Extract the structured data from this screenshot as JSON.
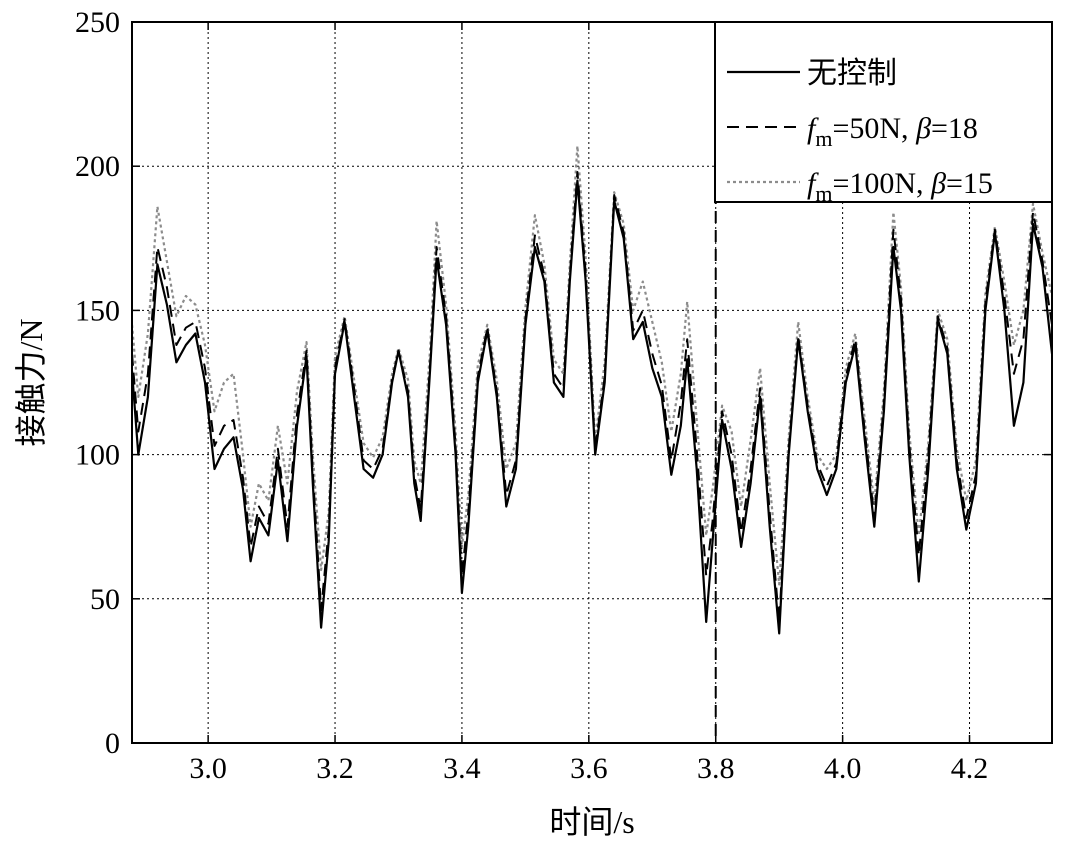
{
  "chart_data": {
    "type": "line",
    "xlabel": "时间/s",
    "ylabel": "接触力/N",
    "xlim": [
      2.88,
      4.33
    ],
    "ylim": [
      0,
      250
    ],
    "xticks": [
      3.0,
      3.2,
      3.4,
      3.6,
      3.8,
      4.0,
      4.2
    ],
    "xtick_labels": [
      "3.0",
      "3.2",
      "3.4",
      "3.6",
      "3.8",
      "4.0",
      "4.2"
    ],
    "yticks": [
      0,
      50,
      100,
      150,
      200,
      250
    ],
    "ytick_labels": [
      "0",
      "50",
      "100",
      "150",
      "200",
      "250"
    ],
    "grid": true,
    "legend_position": "top-right",
    "vertical_marker_x": 3.8,
    "series": [
      {
        "name": "无控制",
        "legend": {
          "prefix": "",
          "sub": "",
          "rest": "",
          "beta": "",
          "tail": "无控制"
        },
        "color": "#000000",
        "style": "solid",
        "x": [
          2.88,
          2.89,
          2.905,
          2.92,
          2.935,
          2.95,
          2.965,
          2.98,
          2.995,
          3.01,
          3.025,
          3.04,
          3.055,
          3.067,
          3.08,
          3.095,
          3.11,
          3.125,
          3.14,
          3.155,
          3.165,
          3.178,
          3.19,
          3.2,
          3.215,
          3.23,
          3.245,
          3.26,
          3.275,
          3.29,
          3.3,
          3.315,
          3.325,
          3.335,
          3.35,
          3.36,
          3.375,
          3.39,
          3.4,
          3.41,
          3.425,
          3.44,
          3.455,
          3.47,
          3.485,
          3.5,
          3.515,
          3.53,
          3.545,
          3.56,
          3.57,
          3.582,
          3.595,
          3.61,
          3.625,
          3.64,
          3.655,
          3.67,
          3.685,
          3.7,
          3.715,
          3.73,
          3.745,
          3.755,
          3.77,
          3.785,
          3.795,
          3.81,
          3.825,
          3.84,
          3.855,
          3.87,
          3.885,
          3.9,
          3.915,
          3.93,
          3.945,
          3.96,
          3.975,
          3.99,
          4.005,
          4.02,
          4.035,
          4.05,
          4.065,
          4.08,
          4.092,
          4.105,
          4.12,
          4.135,
          4.15,
          4.165,
          4.18,
          4.195,
          4.21,
          4.225,
          4.24,
          4.255,
          4.27,
          4.285,
          4.3,
          4.315,
          4.33
        ],
        "values": [
          129,
          100,
          120,
          166,
          152,
          132,
          138,
          142,
          125,
          95,
          102,
          106,
          88,
          63,
          78,
          72,
          98,
          70,
          110,
          134,
          90,
          40,
          70,
          128,
          146,
          120,
          95,
          92,
          100,
          125,
          136,
          120,
          90,
          77,
          130,
          168,
          145,
          100,
          52,
          75,
          125,
          143,
          120,
          82,
          95,
          145,
          172,
          160,
          125,
          120,
          160,
          195,
          160,
          100,
          125,
          188,
          175,
          140,
          146,
          130,
          120,
          93,
          110,
          133,
          95,
          42,
          70,
          112,
          95,
          68,
          90,
          120,
          75,
          38,
          100,
          140,
          115,
          95,
          86,
          95,
          125,
          138,
          105,
          75,
          115,
          172,
          150,
          100,
          56,
          95,
          147,
          135,
          95,
          74,
          90,
          150,
          177,
          150,
          110,
          125,
          180,
          165,
          135
        ]
      },
      {
        "name": "fm=50N, β=18",
        "legend": {
          "prefix": "f",
          "sub": "m",
          "rest": "=50N, ",
          "beta": "β",
          "tail": "=18"
        },
        "color": "#000000",
        "style": "dashed",
        "x": [
          2.88,
          2.89,
          2.905,
          2.92,
          2.935,
          2.95,
          2.965,
          2.98,
          2.995,
          3.01,
          3.025,
          3.04,
          3.055,
          3.067,
          3.08,
          3.095,
          3.11,
          3.125,
          3.14,
          3.155,
          3.165,
          3.178,
          3.19,
          3.2,
          3.215,
          3.23,
          3.245,
          3.26,
          3.275,
          3.29,
          3.3,
          3.315,
          3.325,
          3.335,
          3.35,
          3.36,
          3.375,
          3.39,
          3.4,
          3.41,
          3.425,
          3.44,
          3.455,
          3.47,
          3.485,
          3.5,
          3.515,
          3.53,
          3.545,
          3.56,
          3.57,
          3.582,
          3.595,
          3.61,
          3.625,
          3.64,
          3.655,
          3.67,
          3.685,
          3.7,
          3.715,
          3.73,
          3.745,
          3.755,
          3.77,
          3.785,
          3.795,
          3.81,
          3.825,
          3.84,
          3.855,
          3.87,
          3.885,
          3.9,
          3.915,
          3.93,
          3.945,
          3.96,
          3.975,
          3.99,
          4.005,
          4.02,
          4.035,
          4.05,
          4.065,
          4.08,
          4.092,
          4.105,
          4.12,
          4.135,
          4.15,
          4.165,
          4.18,
          4.195,
          4.21,
          4.225,
          4.24,
          4.255,
          4.27,
          4.285,
          4.3,
          4.315,
          4.33
        ],
        "values": [
          135,
          108,
          128,
          172,
          158,
          138,
          144,
          146,
          130,
          103,
          110,
          112,
          92,
          68,
          82,
          76,
          102,
          75,
          114,
          136,
          94,
          46,
          74,
          130,
          147,
          123,
          98,
          95,
          102,
          126,
          136,
          122,
          93,
          81,
          132,
          172,
          148,
          103,
          58,
          80,
          127,
          144,
          122,
          86,
          98,
          147,
          176,
          162,
          128,
          123,
          162,
          198,
          163,
          102,
          127,
          190,
          177,
          143,
          150,
          135,
          124,
          98,
          118,
          140,
          102,
          58,
          77,
          115,
          100,
          73,
          95,
          123,
          80,
          42,
          102,
          141,
          117,
          97,
          89,
          97,
          127,
          140,
          108,
          78,
          118,
          178,
          154,
          104,
          65,
          100,
          148,
          137,
          98,
          78,
          93,
          153,
          178,
          155,
          128,
          140,
          184,
          167,
          145
        ]
      },
      {
        "name": "fm=100N, β=15",
        "legend": {
          "prefix": "f",
          "sub": "m",
          "rest": "=100N, ",
          "beta": "β",
          "tail": "=15"
        },
        "color": "#8c8c8c",
        "style": "dotted",
        "x": [
          2.88,
          2.89,
          2.905,
          2.92,
          2.935,
          2.95,
          2.965,
          2.98,
          2.995,
          3.01,
          3.025,
          3.04,
          3.055,
          3.067,
          3.08,
          3.095,
          3.11,
          3.125,
          3.14,
          3.155,
          3.165,
          3.178,
          3.19,
          3.2,
          3.215,
          3.23,
          3.245,
          3.26,
          3.275,
          3.29,
          3.3,
          3.315,
          3.325,
          3.335,
          3.35,
          3.36,
          3.375,
          3.39,
          3.4,
          3.41,
          3.425,
          3.44,
          3.455,
          3.47,
          3.485,
          3.5,
          3.515,
          3.53,
          3.545,
          3.56,
          3.57,
          3.582,
          3.595,
          3.61,
          3.625,
          3.64,
          3.655,
          3.67,
          3.685,
          3.7,
          3.715,
          3.73,
          3.745,
          3.755,
          3.77,
          3.785,
          3.795,
          3.81,
          3.825,
          3.84,
          3.855,
          3.87,
          3.885,
          3.9,
          3.915,
          3.93,
          3.945,
          3.96,
          3.975,
          3.99,
          4.005,
          4.02,
          4.035,
          4.05,
          4.065,
          4.08,
          4.092,
          4.105,
          4.12,
          4.135,
          4.15,
          4.165,
          4.18,
          4.195,
          4.21,
          4.225,
          4.24,
          4.255,
          4.27,
          4.285,
          4.3,
          4.315,
          4.33
        ],
        "values": [
          145,
          120,
          142,
          186,
          167,
          148,
          155,
          152,
          138,
          115,
          125,
          128,
          100,
          75,
          90,
          84,
          110,
          90,
          122,
          139,
          100,
          60,
          80,
          134,
          148,
          126,
          104,
          99,
          106,
          128,
          137,
          126,
          98,
          90,
          137,
          181,
          152,
          108,
          68,
          86,
          131,
          145,
          126,
          95,
          104,
          151,
          183,
          166,
          133,
          128,
          166,
          207,
          168,
          105,
          132,
          191,
          180,
          150,
          160,
          146,
          132,
          108,
          128,
          153,
          112,
          72,
          88,
          117,
          108,
          82,
          105,
          130,
          90,
          55,
          106,
          146,
          120,
          100,
          95,
          100,
          130,
          142,
          112,
          83,
          122,
          184,
          158,
          108,
          72,
          104,
          150,
          140,
          102,
          84,
          98,
          156,
          179,
          160,
          138,
          150,
          187,
          170,
          155
        ]
      }
    ]
  }
}
